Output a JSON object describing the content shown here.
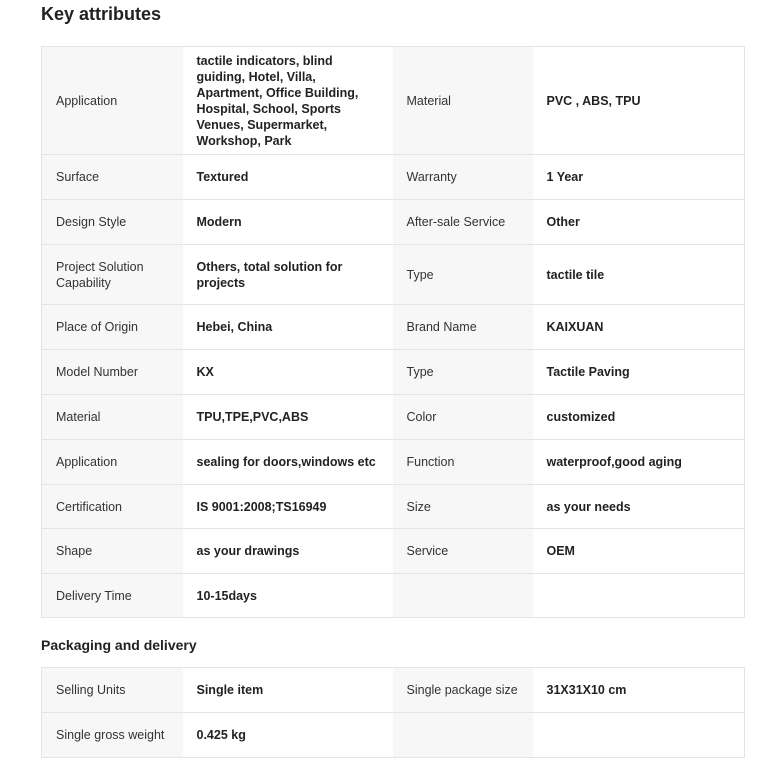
{
  "key_attributes": {
    "title": "Key attributes",
    "rows": [
      {
        "label1": "Application",
        "value1": "tactile indicators, blind guiding, Hotel, Villa, Apartment, Office Building, Hospital, School, Sports Venues, Supermarket, Workshop, Park",
        "label2": "Material",
        "value2": "PVC , ABS, TPU"
      },
      {
        "label1": "Surface",
        "value1": "Textured",
        "label2": "Warranty",
        "value2": "1 Year"
      },
      {
        "label1": "Design Style",
        "value1": "Modern",
        "label2": "After-sale Service",
        "value2": "Other"
      },
      {
        "label1": "Project Solution Capability",
        "value1": "Others, total solution for projects",
        "label2": "Type",
        "value2": "tactile tile"
      },
      {
        "label1": "Place of Origin",
        "value1": "Hebei, China",
        "label2": "Brand Name",
        "value2": "KAIXUAN"
      },
      {
        "label1": "Model Number",
        "value1": "KX",
        "label2": "Type",
        "value2": "Tactile Paving"
      },
      {
        "label1": "Material",
        "value1": "TPU,TPE,PVC,ABS",
        "label2": "Color",
        "value2": "customized"
      },
      {
        "label1": "Application",
        "value1": "sealing for doors,windows etc",
        "label2": "Function",
        "value2": "waterproof,good aging"
      },
      {
        "label1": "Certification",
        "value1": "IS 9001:2008;TS16949",
        "label2": "Size",
        "value2": "as your needs"
      },
      {
        "label1": "Shape",
        "value1": "as your drawings",
        "label2": "Service",
        "value2": "OEM"
      },
      {
        "label1": "Delivery Time",
        "value1": "10-15days",
        "label2": "",
        "value2": ""
      }
    ]
  },
  "packaging": {
    "title": "Packaging and delivery",
    "rows": [
      {
        "label1": "Selling Units",
        "value1": "Single item",
        "label2": "Single package size",
        "value2": "31X31X10 cm"
      },
      {
        "label1": "Single gross weight",
        "value1": "0.425 kg",
        "label2": "",
        "value2": ""
      }
    ]
  }
}
